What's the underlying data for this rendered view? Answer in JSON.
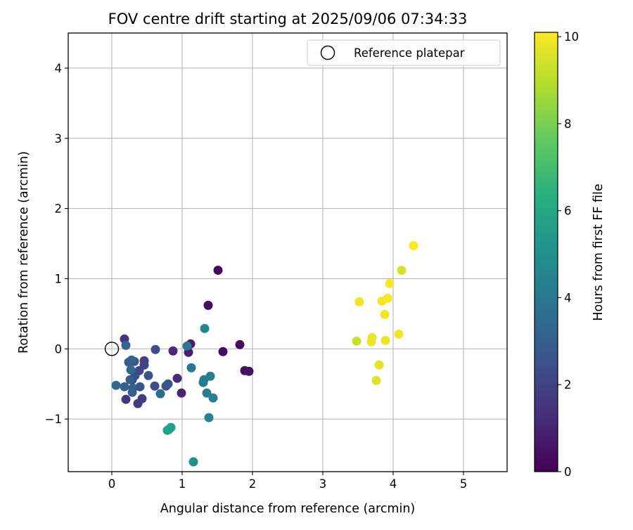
{
  "chart_data": {
    "type": "scatter",
    "title": "FOV centre drift starting at 2025/09/06 07:34:33",
    "xlabel": "Angular distance from reference (arcmin)",
    "ylabel": "Rotation from reference (arcmin)",
    "xlim": [
      -0.62,
      5.62
    ],
    "ylim": [
      -1.75,
      4.5
    ],
    "x_ticks": [
      0,
      1,
      2,
      3,
      4,
      5
    ],
    "y_ticks": [
      -1,
      0,
      1,
      2,
      3,
      4
    ],
    "x_tick_labels": [
      "0",
      "1",
      "2",
      "3",
      "4",
      "5"
    ],
    "y_tick_labels": [
      "−1",
      "0",
      "1",
      "2",
      "3",
      "4"
    ],
    "grid": true,
    "legend": {
      "placement": "top-right",
      "entries": [
        "Reference platepar"
      ]
    },
    "reference_point": {
      "x": 0,
      "y": 0,
      "label": "Reference platepar"
    },
    "colorbar": {
      "label": "Hours from first FF file",
      "range": [
        0,
        10.1
      ],
      "ticks": [
        0,
        2,
        4,
        6,
        8,
        10
      ],
      "tick_labels": [
        "0",
        "2",
        "4",
        "6",
        "8",
        "10"
      ],
      "colormap": "viridis"
    },
    "points": [
      {
        "x": 1.51,
        "y": 1.12,
        "h": 0.2
      },
      {
        "x": 1.37,
        "y": 0.62,
        "h": 0.3
      },
      {
        "x": 1.82,
        "y": 0.06,
        "h": 0.3
      },
      {
        "x": 1.58,
        "y": -0.04,
        "h": 0.4
      },
      {
        "x": 1.89,
        "y": -0.31,
        "h": 0.4
      },
      {
        "x": 1.95,
        "y": -0.32,
        "h": 0.5
      },
      {
        "x": 1.12,
        "y": 0.07,
        "h": 0.8
      },
      {
        "x": 1.09,
        "y": -0.05,
        "h": 0.9
      },
      {
        "x": 0.99,
        "y": -0.63,
        "h": 1.0
      },
      {
        "x": 0.87,
        "y": -0.03,
        "h": 1.2
      },
      {
        "x": 0.93,
        "y": -0.42,
        "h": 1.3
      },
      {
        "x": 0.18,
        "y": 0.14,
        "h": 1.5
      },
      {
        "x": 0.2,
        "y": -0.72,
        "h": 1.6
      },
      {
        "x": 0.37,
        "y": -0.78,
        "h": 1.7
      },
      {
        "x": 0.43,
        "y": -0.71,
        "h": 1.8
      },
      {
        "x": 0.46,
        "y": -0.17,
        "h": 1.9
      },
      {
        "x": 0.46,
        "y": -0.23,
        "h": 2.0
      },
      {
        "x": 0.29,
        "y": -0.44,
        "h": 2.1
      },
      {
        "x": 0.39,
        "y": -0.31,
        "h": 2.2
      },
      {
        "x": 0.33,
        "y": -0.38,
        "h": 2.3
      },
      {
        "x": 0.61,
        "y": -0.53,
        "h": 2.3
      },
      {
        "x": 0.62,
        "y": -0.01,
        "h": 2.4
      },
      {
        "x": 0.77,
        "y": -0.53,
        "h": 2.5
      },
      {
        "x": 0.8,
        "y": -0.5,
        "h": 2.6
      },
      {
        "x": 0.4,
        "y": -0.54,
        "h": 2.7
      },
      {
        "x": 0.52,
        "y": -0.38,
        "h": 2.7
      },
      {
        "x": 0.32,
        "y": -0.18,
        "h": 2.8
      },
      {
        "x": 0.26,
        "y": -0.44,
        "h": 2.9
      },
      {
        "x": 0.3,
        "y": -0.56,
        "h": 3.0
      },
      {
        "x": 0.24,
        "y": -0.19,
        "h": 3.0
      },
      {
        "x": 0.28,
        "y": -0.16,
        "h": 3.1
      },
      {
        "x": 0.29,
        "y": -0.62,
        "h": 3.2
      },
      {
        "x": 0.18,
        "y": -0.54,
        "h": 3.2
      },
      {
        "x": 0.2,
        "y": 0.05,
        "h": 3.3
      },
      {
        "x": 0.06,
        "y": -0.52,
        "h": 3.4
      },
      {
        "x": 0.27,
        "y": -0.3,
        "h": 3.4
      },
      {
        "x": 0.69,
        "y": -0.64,
        "h": 3.5
      },
      {
        "x": 1.07,
        "y": 0.04,
        "h": 4.0
      },
      {
        "x": 1.13,
        "y": -0.27,
        "h": 4.1
      },
      {
        "x": 1.3,
        "y": -0.48,
        "h": 4.2
      },
      {
        "x": 1.31,
        "y": -0.44,
        "h": 4.2
      },
      {
        "x": 1.35,
        "y": -0.63,
        "h": 4.3
      },
      {
        "x": 1.4,
        "y": -0.39,
        "h": 4.3
      },
      {
        "x": 1.44,
        "y": -0.7,
        "h": 4.4
      },
      {
        "x": 1.38,
        "y": -0.98,
        "h": 4.5
      },
      {
        "x": 1.32,
        "y": 0.29,
        "h": 4.6
      },
      {
        "x": 1.16,
        "y": -1.61,
        "h": 5.1
      },
      {
        "x": 0.84,
        "y": -1.12,
        "h": 5.6
      },
      {
        "x": 0.79,
        "y": -1.16,
        "h": 5.7
      },
      {
        "x": 0.81,
        "y": -1.15,
        "h": 5.8
      },
      {
        "x": 3.48,
        "y": 0.11,
        "h": 9.3
      },
      {
        "x": 4.12,
        "y": 1.12,
        "h": 9.5
      },
      {
        "x": 3.76,
        "y": -0.45,
        "h": 9.6
      },
      {
        "x": 3.8,
        "y": -0.23,
        "h": 9.7
      },
      {
        "x": 3.69,
        "y": 0.1,
        "h": 9.8
      },
      {
        "x": 3.7,
        "y": 0.16,
        "h": 9.8
      },
      {
        "x": 3.89,
        "y": 0.12,
        "h": 9.8
      },
      {
        "x": 4.08,
        "y": 0.21,
        "h": 9.9
      },
      {
        "x": 3.88,
        "y": 0.49,
        "h": 9.9
      },
      {
        "x": 3.52,
        "y": 0.67,
        "h": 9.9
      },
      {
        "x": 3.84,
        "y": 0.68,
        "h": 10.0
      },
      {
        "x": 3.92,
        "y": 0.72,
        "h": 10.0
      },
      {
        "x": 3.95,
        "y": 0.93,
        "h": 10.0
      },
      {
        "x": 4.29,
        "y": 1.47,
        "h": 10.1
      }
    ]
  }
}
